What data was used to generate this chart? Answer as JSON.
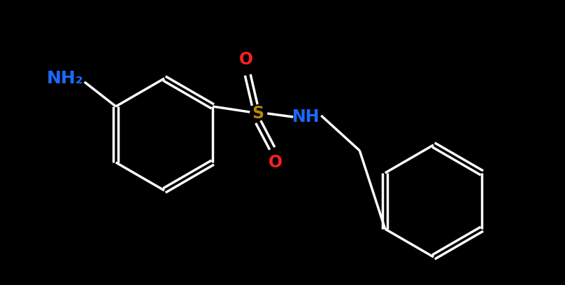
{
  "background_color": "#000000",
  "NH2_label": "NH₂",
  "NH2_color": "#1a6aff",
  "NH_label": "NH",
  "NH_color": "#1a6aff",
  "S_label": "S",
  "S_color": "#b8860b",
  "O_label": "O",
  "O_color": "#ff2020",
  "bond_color": "#ffffff",
  "bond_width": 2.5,
  "figsize": [
    8.08,
    4.07
  ],
  "dpi": 100
}
